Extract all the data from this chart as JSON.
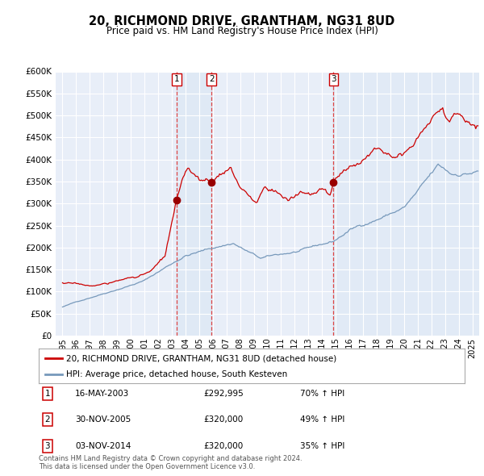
{
  "title": "20, RICHMOND DRIVE, GRANTHAM, NG31 8UD",
  "subtitle": "Price paid vs. HM Land Registry's House Price Index (HPI)",
  "ylim": [
    0,
    600000
  ],
  "yticks": [
    0,
    50000,
    100000,
    150000,
    200000,
    250000,
    300000,
    350000,
    400000,
    450000,
    500000,
    550000,
    600000
  ],
  "background_color": "#ffffff",
  "plot_bg_color": "#e8eef8",
  "grid_color": "#ffffff",
  "shade_color": "#dce8f5",
  "transactions": [
    {
      "date_num": 2003.37,
      "price": 292995,
      "label": "1"
    },
    {
      "date_num": 2005.92,
      "price": 320000,
      "label": "2"
    },
    {
      "date_num": 2014.84,
      "price": 320000,
      "label": "3"
    }
  ],
  "vline_color": "#dd4444",
  "vline_dates": [
    2003.37,
    2005.92,
    2014.84
  ],
  "red_line_color": "#cc0000",
  "blue_line_color": "#7799bb",
  "legend_red_label": "20, RICHMOND DRIVE, GRANTHAM, NG31 8UD (detached house)",
  "legend_blue_label": "HPI: Average price, detached house, South Kesteven",
  "table_rows": [
    {
      "num": "1",
      "date": "16-MAY-2003",
      "price": "£292,995",
      "change": "70% ↑ HPI"
    },
    {
      "num": "2",
      "date": "30-NOV-2005",
      "price": "£320,000",
      "change": "49% ↑ HPI"
    },
    {
      "num": "3",
      "date": "03-NOV-2014",
      "price": "£320,000",
      "change": "35% ↑ HPI"
    }
  ],
  "footer": "Contains HM Land Registry data © Crown copyright and database right 2024.\nThis data is licensed under the Open Government Licence v3.0.",
  "xmin": 1994.5,
  "xmax": 2025.5,
  "xtick_years": [
    1995,
    1996,
    1997,
    1998,
    1999,
    2000,
    2001,
    2002,
    2003,
    2004,
    2005,
    2006,
    2007,
    2008,
    2009,
    2010,
    2011,
    2012,
    2013,
    2014,
    2015,
    2016,
    2017,
    2018,
    2019,
    2020,
    2021,
    2022,
    2023,
    2024,
    2025
  ]
}
